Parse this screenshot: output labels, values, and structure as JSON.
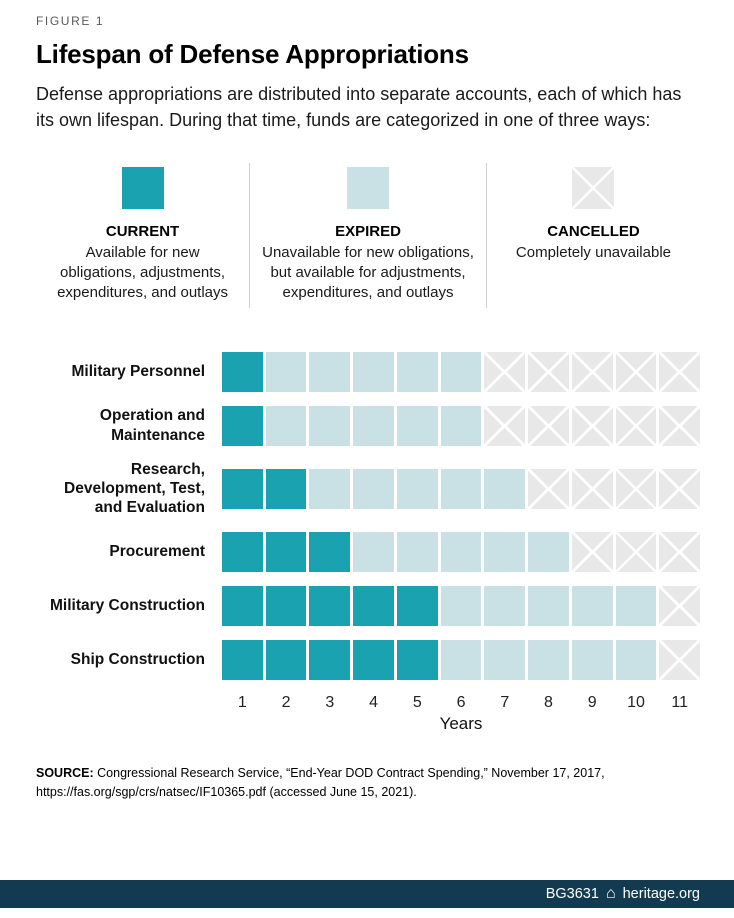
{
  "figure": {
    "kicker": "FIGURE 1",
    "title": "Lifespan of Defense Appropriations",
    "intro": "Defense appropriations are distributed into separate accounts, each of which has its own lifespan. During that time, funds are categorized in one of three ways:"
  },
  "chart_data": {
    "type": "heatmap",
    "title": "Lifespan of Defense Appropriations",
    "xlabel": "Years",
    "x": [
      1,
      2,
      3,
      4,
      5,
      6,
      7,
      8,
      9,
      10,
      11
    ],
    "legend_position": "top",
    "legend": [
      {
        "key": "current",
        "label": "CURRENT",
        "description": "Available for new obligations, adjustments, expenditures, and outlays",
        "color": "#1aa2b0",
        "pattern": "solid"
      },
      {
        "key": "expired",
        "label": "EXPIRED",
        "description": "Unavailable for new obligations, but available for adjustments, expenditures, and outlays",
        "color": "#c9e1e5",
        "pattern": "solid"
      },
      {
        "key": "cancelled",
        "label": "CANCELLED",
        "description": "Completely unavailable",
        "color": "#e8e8e8",
        "pattern": "x-hatch"
      }
    ],
    "categories": [
      "Military Personnel",
      "Operation and Maintenance",
      "Research, Development, Test, and Evaluation",
      "Procurement",
      "Military Construction",
      "Ship Construction"
    ],
    "series": [
      {
        "name": "Military Personnel",
        "current_years": [
          1,
          1
        ],
        "expired_years": [
          2,
          6
        ],
        "cancelled_years": [
          7,
          11
        ],
        "cells": [
          "current",
          "expired",
          "expired",
          "expired",
          "expired",
          "expired",
          "cancelled",
          "cancelled",
          "cancelled",
          "cancelled",
          "cancelled"
        ]
      },
      {
        "name": "Operation and Maintenance",
        "current_years": [
          1,
          1
        ],
        "expired_years": [
          2,
          6
        ],
        "cancelled_years": [
          7,
          11
        ],
        "cells": [
          "current",
          "expired",
          "expired",
          "expired",
          "expired",
          "expired",
          "cancelled",
          "cancelled",
          "cancelled",
          "cancelled",
          "cancelled"
        ]
      },
      {
        "name": "Research, Development, Test, and Evaluation",
        "current_years": [
          1,
          2
        ],
        "expired_years": [
          3,
          7
        ],
        "cancelled_years": [
          8,
          11
        ],
        "cells": [
          "current",
          "current",
          "expired",
          "expired",
          "expired",
          "expired",
          "expired",
          "cancelled",
          "cancelled",
          "cancelled",
          "cancelled"
        ]
      },
      {
        "name": "Procurement",
        "current_years": [
          1,
          3
        ],
        "expired_years": [
          4,
          8
        ],
        "cancelled_years": [
          9,
          11
        ],
        "cells": [
          "current",
          "current",
          "current",
          "expired",
          "expired",
          "expired",
          "expired",
          "expired",
          "cancelled",
          "cancelled",
          "cancelled"
        ]
      },
      {
        "name": "Military Construction",
        "current_years": [
          1,
          5
        ],
        "expired_years": [
          6,
          10
        ],
        "cancelled_years": [
          11,
          11
        ],
        "cells": [
          "current",
          "current",
          "current",
          "current",
          "current",
          "expired",
          "expired",
          "expired",
          "expired",
          "expired",
          "cancelled"
        ]
      },
      {
        "name": "Ship Construction",
        "current_years": [
          1,
          5
        ],
        "expired_years": [
          6,
          10
        ],
        "cancelled_years": [
          11,
          11
        ],
        "cells": [
          "current",
          "current",
          "current",
          "current",
          "current",
          "expired",
          "expired",
          "expired",
          "expired",
          "expired",
          "cancelled"
        ]
      }
    ]
  },
  "source": {
    "label": "SOURCE:",
    "text": "Congressional Research Service, “End-Year DOD Contract Spending,” November 17, 2017, https://fas.org/sgp/crs/natsec/IF10365.pdf (accessed June 15, 2021)."
  },
  "footer": {
    "id": "BG3631",
    "logo_icon": "heritage-logo-icon",
    "logo_glyph": "⌂",
    "site": "heritage.org",
    "bg_color": "#123a50"
  }
}
